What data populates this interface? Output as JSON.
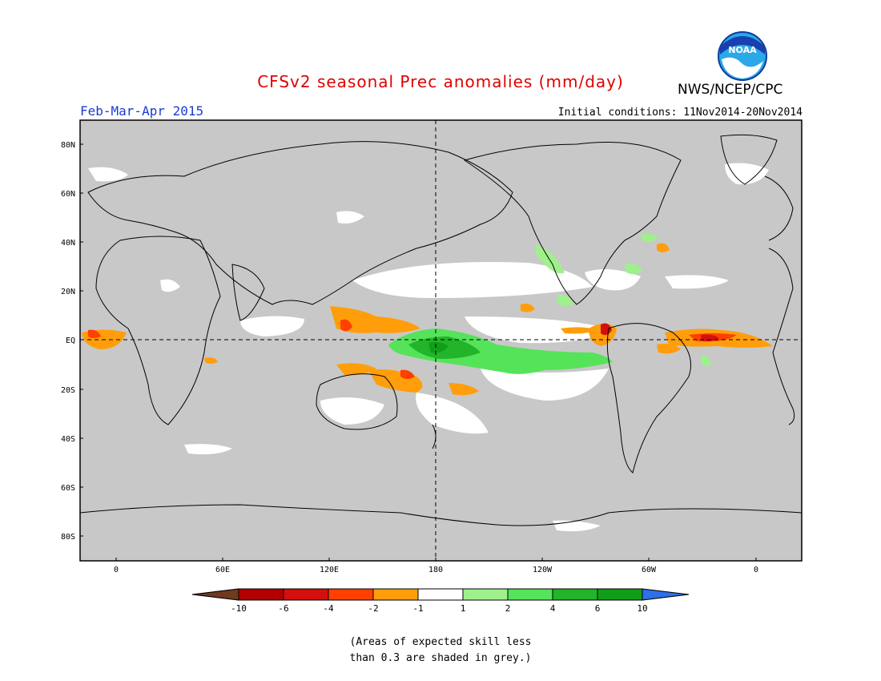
{
  "header": {
    "title": "CFSv2 seasonal Prec anomalies (mm/day)",
    "agency": "NWS/NCEP/CPC",
    "logo_text": "NOAA",
    "season": "Feb-Mar-Apr 2015",
    "initial_conditions": "Initial conditions: 11Nov2014-20Nov2014"
  },
  "map": {
    "lat_labels": [
      "80N",
      "60N",
      "40N",
      "20N",
      "EQ",
      "20S",
      "40S",
      "60S",
      "80S"
    ],
    "lon_labels": [
      "0",
      "60E",
      "120E",
      "180",
      "120W",
      "60W",
      "0"
    ],
    "background_color": "#c8c8c8",
    "neutral_color": "#ffffff"
  },
  "legend": {
    "tick_labels": [
      "-10",
      "-6",
      "-4",
      "-2",
      "-1",
      "1",
      "2",
      "4",
      "6",
      "10"
    ],
    "colors": [
      "#6e3b1e",
      "#b30000",
      "#d4100f",
      "#ff4000",
      "#ff9e0a",
      "#ffffff",
      "#9ff08c",
      "#55e35a",
      "#22b42a",
      "#109e18",
      "#2f6fe8"
    ]
  },
  "footnote": {
    "line1": "(Areas of expected skill less",
    "line2": "than 0.3 are shaded in grey.)"
  }
}
